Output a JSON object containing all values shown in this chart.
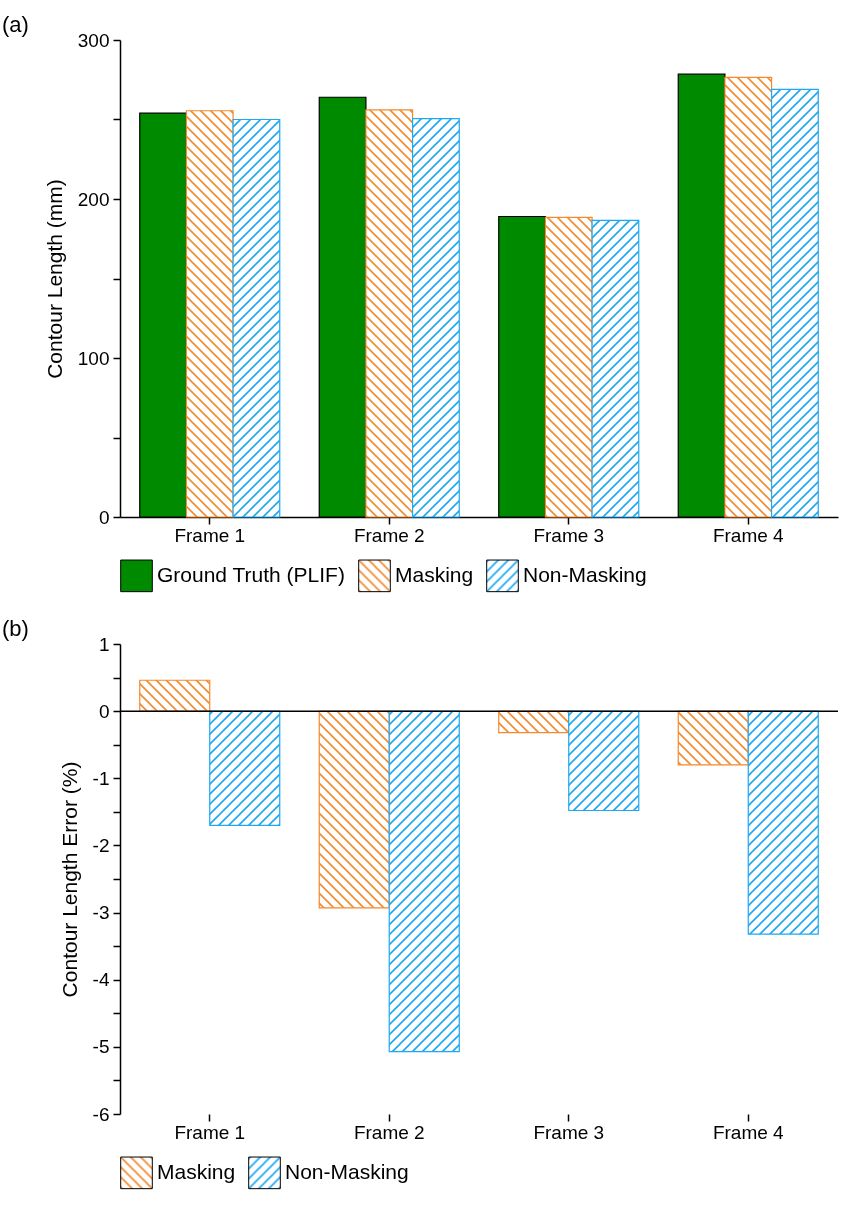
{
  "chart_data": [
    {
      "type": "bar",
      "title": "(a)",
      "ylabel": "Contour Length (mm)",
      "categories": [
        "Frame 1",
        "Frame 2",
        "Frame 3",
        "Frame 4"
      ],
      "series": [
        {
          "name": "Ground Truth (PLIF)",
          "color": "#008a00",
          "values": [
            254,
            264,
            189,
            278.5
          ]
        },
        {
          "name": "Masking",
          "color": "#f28a2e",
          "values": [
            255.5,
            256,
            188.5,
            276.5
          ]
        },
        {
          "name": "Non-Masking",
          "color": "#1ca8f2",
          "values": [
            250,
            250.5,
            186.5,
            269
          ]
        }
      ],
      "ylim": [
        0,
        300
      ],
      "yticks": [
        0,
        {
          "value": 50,
          "label": null
        },
        100,
        {
          "value": 150,
          "label": null
        },
        200,
        {
          "value": 250,
          "label": null
        },
        300
      ],
      "legend": "bottom",
      "grid": false
    },
    {
      "type": "bar",
      "title": "(b)",
      "ylabel": "Contour Length Error (%)",
      "categories": [
        "Frame 1",
        "Frame 2",
        "Frame 3",
        "Frame 4"
      ],
      "series": [
        {
          "name": "Masking",
          "color": "#f28a2e",
          "values": [
            0.46,
            -2.93,
            -0.32,
            -0.8
          ]
        },
        {
          "name": "Non-Masking",
          "color": "#1ca8f2",
          "values": [
            -1.7,
            -5.07,
            -1.48,
            -3.32
          ]
        }
      ],
      "ylim": [
        -6,
        1
      ],
      "yticks": [
        -6,
        {
          "value": -5.5,
          "label": null
        },
        -5,
        {
          "value": -4.5,
          "label": null
        },
        -4,
        {
          "value": -3.5,
          "label": null
        },
        -3,
        {
          "value": -2.5,
          "label": null
        },
        -2,
        {
          "value": -1.5,
          "label": null
        },
        -1,
        {
          "value": -0.5,
          "label": null
        },
        0,
        {
          "value": 0.5,
          "label": null
        },
        1
      ],
      "ref_lines": [
        {
          "axis": "y",
          "value": 0,
          "color": "#000000"
        }
      ],
      "legend": "bottom",
      "grid": false
    }
  ]
}
